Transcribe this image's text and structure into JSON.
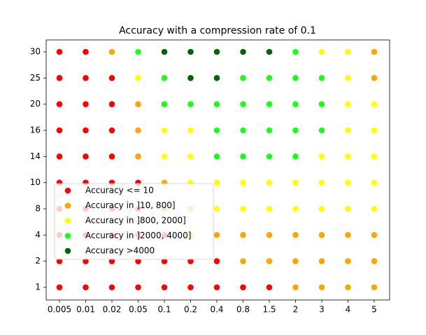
{
  "chart_data": {
    "type": "scatter",
    "title": "Accuracy with a compression rate of 0.1",
    "xticks": [
      0.005,
      0.01,
      0.02,
      0.05,
      0.1,
      0.2,
      0.4,
      0.8,
      1.5,
      2,
      3,
      4,
      5
    ],
    "yticks": [
      1,
      2,
      4,
      8,
      10,
      14,
      16,
      20,
      25,
      30
    ],
    "legend": "lower left",
    "series": [
      {
        "name": "Accuracy <= 10",
        "color": "#ff0000",
        "x": [
          0.005,
          0.01,
          0.02,
          0.05,
          0.1,
          0.2,
          0.4,
          0.8,
          1.5,
          0.005,
          0.01,
          0.02,
          0.05,
          0.1,
          0.2,
          0.4,
          0.005,
          0.01,
          0.02,
          0.05,
          0.1,
          0.005,
          0.01,
          0.02,
          0.05,
          0.005,
          0.01,
          0.02,
          0.05,
          0.005,
          0.01,
          0.02,
          0.005,
          0.01,
          0.02,
          0.005,
          0.01,
          0.02,
          0.005,
          0.01,
          0.02,
          0.005,
          0.01
        ],
        "y": [
          1,
          1,
          1,
          1,
          1,
          1,
          1,
          1,
          1,
          2,
          2,
          2,
          2,
          2,
          2,
          2,
          4,
          4,
          4,
          4,
          4,
          8,
          8,
          8,
          8,
          10,
          10,
          10,
          10,
          14,
          14,
          14,
          16,
          16,
          16,
          20,
          20,
          20,
          25,
          25,
          25,
          30,
          30
        ]
      },
      {
        "name": "Accuracy in ]10, 800]",
        "color": "#ffa500",
        "x": [
          2,
          3,
          4,
          5,
          0.8,
          1.5,
          2,
          3,
          4,
          5,
          0.2,
          0.4,
          0.8,
          1.5,
          2,
          3,
          4,
          5,
          0.1,
          0.2,
          0.1,
          0.05,
          0.05,
          0.05,
          5,
          0.02,
          5
        ],
        "y": [
          1,
          1,
          1,
          1,
          2,
          2,
          2,
          2,
          2,
          2,
          4,
          4,
          4,
          4,
          4,
          4,
          4,
          4,
          8,
          8,
          10,
          14,
          16,
          20,
          25,
          30,
          30
        ]
      },
      {
        "name": "Accuracy in ]800, 2000]",
        "color": "#ffff00",
        "x": [
          0.4,
          0.8,
          1.5,
          2,
          3,
          4,
          5,
          0.2,
          0.4,
          0.8,
          1.5,
          2,
          3,
          4,
          5,
          0.1,
          0.2,
          3,
          4,
          5,
          0.1,
          0.2,
          4,
          5,
          4,
          5,
          0.05,
          4,
          3,
          4
        ],
        "y": [
          8,
          8,
          8,
          8,
          8,
          8,
          8,
          10,
          10,
          10,
          10,
          10,
          10,
          10,
          10,
          14,
          14,
          14,
          14,
          14,
          16,
          16,
          16,
          16,
          20,
          20,
          25,
          25,
          30,
          30
        ]
      },
      {
        "name": "Accuracy in ]2000, 4000]",
        "color": "#19ff19",
        "x": [
          0.4,
          0.8,
          1.5,
          2,
          0.4,
          0.8,
          1.5,
          2,
          3,
          0.1,
          0.2,
          0.4,
          0.8,
          1.5,
          2,
          3,
          0.1,
          0.8,
          1.5,
          2,
          3,
          0.05,
          2
        ],
        "y": [
          14,
          14,
          14,
          14,
          16,
          16,
          16,
          16,
          16,
          20,
          20,
          20,
          20,
          20,
          20,
          20,
          25,
          25,
          25,
          25,
          25,
          30,
          30
        ]
      },
      {
        "name": "Accuracy >4000",
        "color": "#006400",
        "x": [
          0.2,
          0.4,
          0.1,
          0.2,
          0.4,
          0.8,
          1.5
        ],
        "y": [
          25,
          25,
          30,
          30,
          30,
          30,
          30
        ]
      }
    ]
  }
}
